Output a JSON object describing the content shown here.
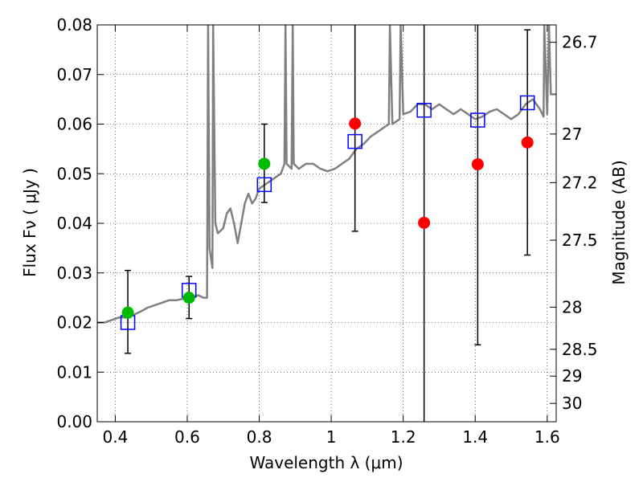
{
  "chart_data": {
    "type": "scatter",
    "title": "",
    "xlabel": "Wavelength  λ (μm)",
    "ylabel": "Flux  Fν  ( μJy )",
    "ylabel_right": "Magnitude (AB)",
    "xlim": [
      0.35,
      1.625
    ],
    "ylim": [
      0.0,
      0.08
    ],
    "grid": true,
    "x_ticks": [
      0.4,
      0.6,
      0.8,
      1.0,
      1.2,
      1.4,
      1.6
    ],
    "x_tick_labels": [
      "0.4",
      "0.6",
      "0.8",
      "1",
      "1.2",
      "1.4",
      "1.6"
    ],
    "y_ticks": [
      0.0,
      0.01,
      0.02,
      0.03,
      0.04,
      0.05,
      0.06,
      0.07,
      0.08
    ],
    "y_tick_labels": [
      "0.00",
      "0.01",
      "0.02",
      "0.03",
      "0.04",
      "0.05",
      "0.06",
      "0.07",
      "0.08"
    ],
    "right_axis_ticks": [
      {
        "label": "26.7",
        "flux": 0.0765
      },
      {
        "label": "27",
        "flux": 0.058
      },
      {
        "label": "27.2",
        "flux": 0.0482
      },
      {
        "label": "27.5",
        "flux": 0.0366
      },
      {
        "label": "28",
        "flux": 0.0231
      },
      {
        "label": "28.5",
        "flux": 0.0146
      },
      {
        "label": "29",
        "flux": 0.0092
      },
      {
        "label": "30",
        "flux": 0.0037
      }
    ],
    "series": [
      {
        "kind": "spectrum",
        "color": "#808080",
        "points": [
          [
            0.35,
            0.02
          ],
          [
            0.37,
            0.02
          ],
          [
            0.39,
            0.0205
          ],
          [
            0.41,
            0.021
          ],
          [
            0.43,
            0.021
          ],
          [
            0.45,
            0.0215
          ],
          [
            0.47,
            0.0222
          ],
          [
            0.49,
            0.023
          ],
          [
            0.51,
            0.0235
          ],
          [
            0.53,
            0.024
          ],
          [
            0.55,
            0.0245
          ],
          [
            0.57,
            0.0245
          ],
          [
            0.59,
            0.0248
          ],
          [
            0.61,
            0.025
          ],
          [
            0.63,
            0.0255
          ],
          [
            0.645,
            0.025
          ],
          [
            0.655,
            0.025
          ],
          [
            0.658,
            0.08
          ],
          [
            0.662,
            0.035
          ],
          [
            0.67,
            0.031
          ],
          [
            0.672,
            0.08
          ],
          [
            0.678,
            0.04
          ],
          [
            0.685,
            0.038
          ],
          [
            0.7,
            0.039
          ],
          [
            0.71,
            0.042
          ],
          [
            0.72,
            0.043
          ],
          [
            0.73,
            0.04
          ],
          [
            0.74,
            0.036
          ],
          [
            0.76,
            0.044
          ],
          [
            0.77,
            0.046
          ],
          [
            0.78,
            0.044
          ],
          [
            0.79,
            0.045
          ],
          [
            0.8,
            0.047
          ],
          [
            0.82,
            0.048
          ],
          [
            0.84,
            0.049
          ],
          [
            0.86,
            0.05
          ],
          [
            0.87,
            0.052
          ],
          [
            0.873,
            0.08
          ],
          [
            0.876,
            0.052
          ],
          [
            0.89,
            0.051
          ],
          [
            0.893,
            0.08
          ],
          [
            0.896,
            0.052
          ],
          [
            0.91,
            0.051
          ],
          [
            0.93,
            0.052
          ],
          [
            0.95,
            0.052
          ],
          [
            0.97,
            0.051
          ],
          [
            0.99,
            0.0505
          ],
          [
            1.01,
            0.051
          ],
          [
            1.03,
            0.052
          ],
          [
            1.05,
            0.053
          ],
          [
            1.07,
            0.055
          ],
          [
            1.09,
            0.056
          ],
          [
            1.11,
            0.0575
          ],
          [
            1.13,
            0.0585
          ],
          [
            1.15,
            0.0595
          ],
          [
            1.16,
            0.06
          ],
          [
            1.163,
            0.08
          ],
          [
            1.17,
            0.06
          ],
          [
            1.19,
            0.061
          ],
          [
            1.193,
            0.08
          ],
          [
            1.2,
            0.062
          ],
          [
            1.22,
            0.0625
          ],
          [
            1.24,
            0.064
          ],
          [
            1.26,
            0.064
          ],
          [
            1.28,
            0.063
          ],
          [
            1.3,
            0.064
          ],
          [
            1.32,
            0.063
          ],
          [
            1.34,
            0.062
          ],
          [
            1.36,
            0.063
          ],
          [
            1.38,
            0.062
          ],
          [
            1.4,
            0.061
          ],
          [
            1.42,
            0.0615
          ],
          [
            1.44,
            0.0625
          ],
          [
            1.46,
            0.063
          ],
          [
            1.48,
            0.062
          ],
          [
            1.5,
            0.061
          ],
          [
            1.52,
            0.062
          ],
          [
            1.54,
            0.064
          ],
          [
            1.56,
            0.065
          ],
          [
            1.58,
            0.063
          ],
          [
            1.59,
            0.0615
          ],
          [
            1.592,
            0.08
          ],
          [
            1.6,
            0.062
          ],
          [
            1.605,
            0.08
          ],
          [
            1.61,
            0.066
          ],
          [
            1.625,
            0.066
          ]
        ]
      },
      {
        "kind": "model_photometry",
        "marker": "open-square",
        "color": "#0000ff",
        "points": [
          [
            0.435,
            0.02
          ],
          [
            0.605,
            0.0265
          ],
          [
            0.814,
            0.0478
          ],
          [
            1.066,
            0.0565
          ],
          [
            1.258,
            0.0628
          ],
          [
            1.407,
            0.0608
          ],
          [
            1.545,
            0.0643
          ]
        ]
      },
      {
        "kind": "detections",
        "marker": "filled-circle",
        "color": "#00bb00",
        "points": [
          {
            "x": 0.435,
            "y": 0.022,
            "err_lo": 0.0138,
            "err_hi": 0.0305
          },
          {
            "x": 0.605,
            "y": 0.025,
            "err_lo": 0.0208,
            "err_hi": 0.0293
          },
          {
            "x": 0.814,
            "y": 0.052,
            "err_lo": 0.0442,
            "err_hi": 0.06
          }
        ]
      },
      {
        "kind": "upper_limits",
        "marker": "filled-circle",
        "color": "#ff0000",
        "points": [
          {
            "x": 1.066,
            "y": 0.0601,
            "err_lo": 0.0384,
            "err_hi": 0.08
          },
          {
            "x": 1.258,
            "y": 0.0401,
            "err_lo": 0.0,
            "err_hi": 0.08
          },
          {
            "x": 1.407,
            "y": 0.0519,
            "err_lo": 0.0155,
            "err_hi": 0.08
          },
          {
            "x": 1.545,
            "y": 0.0563,
            "err_lo": 0.0336,
            "err_hi": 0.079
          }
        ]
      }
    ]
  }
}
